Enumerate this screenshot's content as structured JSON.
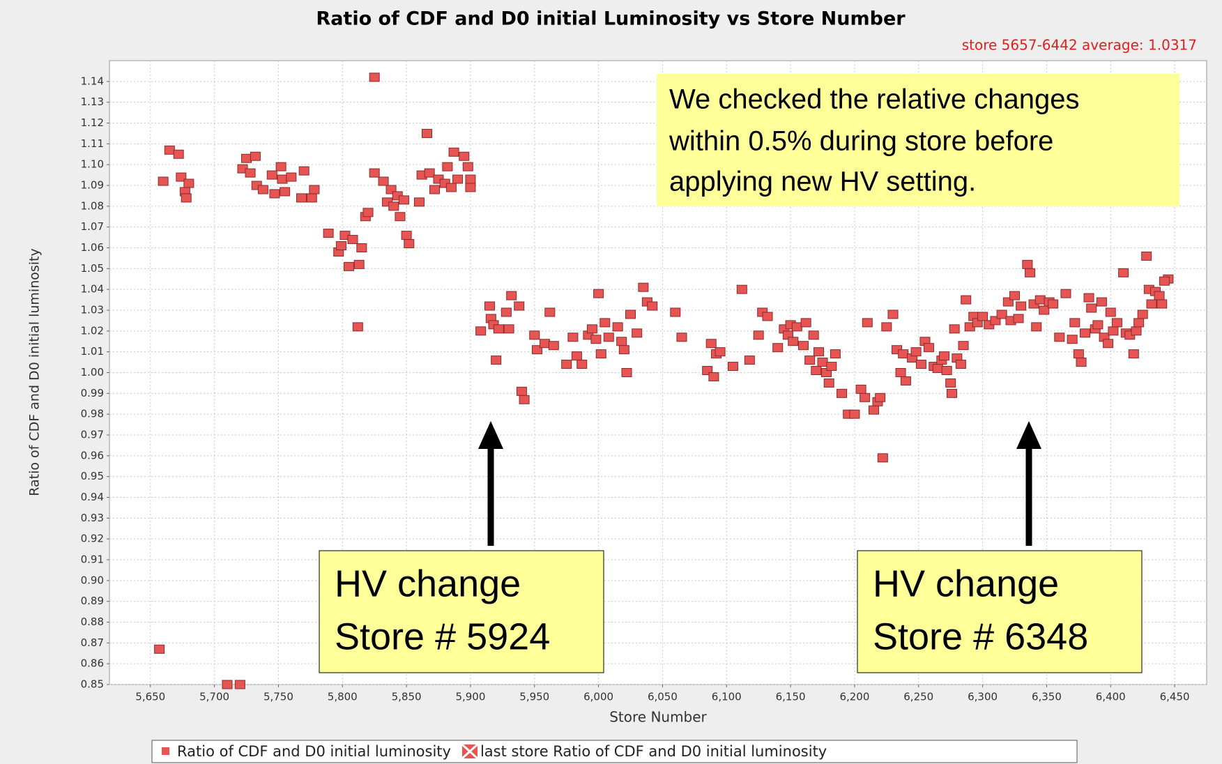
{
  "chart_data": {
    "type": "scatter",
    "title": "Ratio of CDF and D0 initial Luminosity vs Store Number",
    "subtitle": "store 5657-6442 average: 1.0317",
    "x_label": "Store Number",
    "y_label": "Ratio of CDF and D0 initial luminosity",
    "xlim": [
      5618,
      6475
    ],
    "ylim": [
      0.85,
      1.15
    ],
    "grid": true,
    "legend": "bottom",
    "xticks": [
      {
        "value": 5650,
        "label": "5,650"
      },
      {
        "value": 5700,
        "label": "5,700"
      },
      {
        "value": 5750,
        "label": "5,750"
      },
      {
        "value": 5800,
        "label": "5,800"
      },
      {
        "value": 5850,
        "label": "5,850"
      },
      {
        "value": 5900,
        "label": "5,900"
      },
      {
        "value": 5950,
        "label": "5,950"
      },
      {
        "value": 6000,
        "label": "6,000"
      },
      {
        "value": 6050,
        "label": "6,050"
      },
      {
        "value": 6100,
        "label": "6,100"
      },
      {
        "value": 6150,
        "label": "6,150"
      },
      {
        "value": 6200,
        "label": "6,200"
      },
      {
        "value": 6250,
        "label": "6,250"
      },
      {
        "value": 6300,
        "label": "6,300"
      },
      {
        "value": 6350,
        "label": "6,350"
      },
      {
        "value": 6400,
        "label": "6,400"
      },
      {
        "value": 6450,
        "label": "6,450"
      }
    ],
    "yticks": [
      0.85,
      0.86,
      0.87,
      0.88,
      0.89,
      {
        "value": 0.9,
        "label": "0.90"
      },
      0.91,
      0.92,
      0.93,
      0.94,
      0.95,
      0.96,
      0.97,
      0.98,
      0.99,
      {
        "value": 1.0,
        "label": "1.00"
      },
      1.01,
      1.02,
      1.03,
      1.04,
      1.05,
      1.06,
      1.07,
      1.08,
      1.09,
      {
        "value": 1.1,
        "label": "1.10"
      },
      1.11,
      1.12,
      1.13,
      1.14
    ],
    "series": [
      {
        "name": "Ratio of CDF and D0 initial luminosity",
        "color": "#e65454",
        "x": [
          5657,
          5660,
          5665,
          5672,
          5674,
          5677,
          5678,
          5680,
          5710,
          5720,
          5722,
          5725,
          5728,
          5732,
          5733,
          5738,
          5745,
          5747,
          5752,
          5753,
          5755,
          5760,
          5768,
          5770,
          5776,
          5778,
          5789,
          5797,
          5799,
          5802,
          5805,
          5808,
          5812,
          5813,
          5815,
          5818,
          5820,
          5825,
          5825,
          5832,
          5835,
          5838,
          5840,
          5843,
          5845,
          5848,
          5850,
          5852,
          5860,
          5862,
          5866,
          5868,
          5872,
          5875,
          5880,
          5882,
          5885,
          5887,
          5890,
          5895,
          5898,
          5900,
          5900,
          5908,
          5915,
          5916,
          5918,
          5920,
          5922,
          5928,
          5930,
          5932,
          5938,
          5940,
          5942,
          5950,
          5952,
          5958,
          5962,
          5965,
          5975,
          5980,
          5983,
          5987,
          5992,
          5995,
          5998,
          6000,
          6002,
          6005,
          6008,
          6015,
          6018,
          6020,
          6022,
          6025,
          6030,
          6035,
          6038,
          6042,
          6060,
          6065,
          6085,
          6088,
          6090,
          6092,
          6095,
          6105,
          6112,
          6118,
          6125,
          6128,
          6132,
          6140,
          6145,
          6148,
          6150,
          6152,
          6155,
          6160,
          6162,
          6165,
          6168,
          6170,
          6172,
          6175,
          6178,
          6180,
          6182,
          6185,
          6190,
          6195,
          6200,
          6205,
          6208,
          6210,
          6215,
          6218,
          6220,
          6222,
          6225,
          6230,
          6233,
          6236,
          6238,
          6240,
          6245,
          6248,
          6252,
          6255,
          6258,
          6262,
          6265,
          6268,
          6270,
          6272,
          6275,
          6276,
          6278,
          6280,
          6283,
          6285,
          6287,
          6290,
          6293,
          6296,
          6300,
          6305,
          6310,
          6315,
          6320,
          6322,
          6325,
          6328,
          6330,
          6335,
          6337,
          6340,
          6342,
          6345,
          6348,
          6352,
          6355,
          6360,
          6365,
          6370,
          6372,
          6375,
          6377,
          6380,
          6383,
          6385,
          6388,
          6390,
          6393,
          6395,
          6398,
          6400,
          6402,
          6405,
          6410,
          6412,
          6415,
          6418,
          6420,
          6422,
          6425,
          6428,
          6430,
          6432,
          6435,
          6438,
          6440,
          6445
        ],
        "values": [
          0.867,
          1.092,
          1.107,
          1.105,
          1.094,
          1.087,
          1.084,
          1.091,
          0.85,
          0.85,
          1.098,
          1.103,
          1.096,
          1.104,
          1.09,
          1.088,
          1.095,
          1.086,
          1.099,
          1.093,
          1.087,
          1.094,
          1.084,
          1.097,
          1.084,
          1.088,
          1.067,
          1.058,
          1.061,
          1.066,
          1.051,
          1.064,
          1.022,
          1.052,
          1.06,
          1.075,
          1.077,
          1.096,
          1.142,
          1.092,
          1.082,
          1.088,
          1.08,
          1.085,
          1.075,
          1.083,
          1.066,
          1.062,
          1.082,
          1.095,
          1.115,
          1.096,
          1.088,
          1.093,
          1.091,
          1.099,
          1.089,
          1.106,
          1.093,
          1.104,
          1.099,
          1.093,
          1.089,
          1.02,
          1.032,
          1.026,
          1.023,
          1.006,
          1.021,
          1.029,
          1.021,
          1.037,
          1.032,
          0.991,
          0.987,
          1.018,
          1.011,
          1.014,
          1.029,
          1.013,
          1.004,
          1.017,
          1.008,
          1.004,
          1.018,
          1.021,
          1.016,
          1.038,
          1.009,
          1.024,
          1.017,
          1.022,
          1.015,
          1.011,
          1.0,
          1.028,
          1.019,
          1.041,
          1.034,
          1.032,
          1.029,
          1.017,
          1.001,
          1.014,
          0.998,
          1.009,
          1.01,
          1.003,
          1.04,
          1.006,
          1.018,
          1.029,
          1.027,
          1.012,
          1.021,
          1.018,
          1.023,
          1.015,
          1.022,
          1.013,
          1.024,
          1.006,
          1.018,
          1.001,
          1.01,
          1.005,
          1.0,
          0.995,
          1.003,
          1.009,
          0.99,
          0.98,
          0.98,
          0.992,
          0.988,
          1.024,
          0.982,
          0.986,
          0.988,
          0.959,
          1.022,
          1.028,
          1.011,
          1.0,
          1.009,
          0.996,
          1.007,
          1.01,
          1.004,
          1.015,
          1.012,
          1.003,
          1.002,
          1.006,
          1.008,
          1.001,
          0.995,
          0.99,
          1.021,
          1.007,
          1.004,
          1.013,
          1.035,
          1.022,
          1.027,
          1.024,
          1.027,
          1.023,
          1.025,
          1.028,
          1.034,
          1.025,
          1.037,
          1.026,
          1.032,
          1.052,
          1.048,
          1.033,
          1.022,
          1.035,
          1.03,
          1.034,
          1.033,
          1.017,
          1.038,
          1.016,
          1.024,
          1.009,
          1.005,
          1.019,
          1.036,
          1.031,
          1.021,
          1.023,
          1.034,
          1.017,
          1.014,
          1.029,
          1.02,
          1.024,
          1.048,
          1.019,
          1.018,
          1.009,
          1.02,
          1.024,
          1.028,
          1.056,
          1.04,
          1.033,
          1.039,
          1.037,
          1.033,
          1.045
        ]
      },
      {
        "name": "last store Ratio of CDF and D0 initial luminosity",
        "color": "#e65454",
        "x": [
          6442
        ],
        "values": [
          1.044
        ]
      }
    ],
    "annotations": [
      {
        "lines": [
          "We checked the relative changes",
          "within 0.5% during store before",
          "applying new HV setting."
        ]
      },
      {
        "lines": [
          "HV change",
          "Store # 5924"
        ]
      },
      {
        "lines": [
          "HV change",
          "Store # 6348"
        ]
      }
    ]
  }
}
